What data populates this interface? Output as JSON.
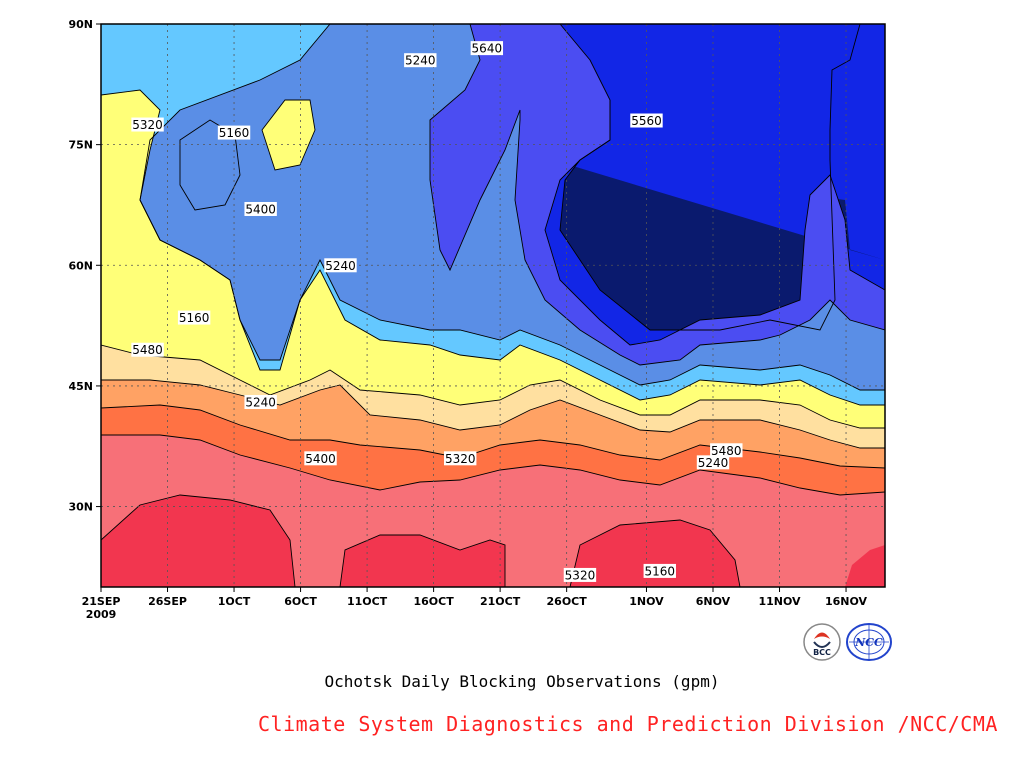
{
  "chart_data": {
    "type": "heatmap",
    "subtype": "filled-contour",
    "title": "",
    "xlabel": "",
    "ylabel": "",
    "caption": "Ochotsk Daily Blocking Observations (gpm)",
    "credit": "Climate System Diagnostics and Prediction Division /NCC/CMA",
    "x_axis": {
      "ticks": [
        {
          "day": 0,
          "label": "21SEP",
          "sublabel": "2009"
        },
        {
          "day": 5,
          "label": "26SEP"
        },
        {
          "day": 10,
          "label": "1OCT"
        },
        {
          "day": 15,
          "label": "6OCT"
        },
        {
          "day": 20,
          "label": "11OCT"
        },
        {
          "day": 25,
          "label": "16OCT"
        },
        {
          "day": 30,
          "label": "21OCT"
        },
        {
          "day": 35,
          "label": "26OCT"
        },
        {
          "day": 41,
          "label": "1NOV"
        },
        {
          "day": 46,
          "label": "6NOV"
        },
        {
          "day": 51,
          "label": "11NOV"
        },
        {
          "day": 56,
          "label": "16NOV"
        }
      ],
      "range": [
        "21SEP2009",
        "19NOV2009"
      ]
    },
    "y_axis": {
      "ticks": [
        {
          "lat": 30,
          "label": "30N"
        },
        {
          "lat": 45,
          "label": "45N"
        },
        {
          "lat": 60,
          "label": "60N"
        },
        {
          "lat": 75,
          "label": "75N"
        },
        {
          "lat": 90,
          "label": "90N"
        }
      ],
      "range": [
        20,
        90
      ]
    },
    "grid": true,
    "levels": [
      5160,
      5240,
      5320,
      5400,
      5480,
      5560,
      5640,
      5720,
      5800,
      5880
    ],
    "colors": [
      "#0a1a6e",
      "#1226e6",
      "#4b4df2",
      "#5a8ee6",
      "#64c8ff",
      "#ffff78",
      "#ffe0a0",
      "#ffa264",
      "#ff7244",
      "#f77078",
      "#f2364f"
    ],
    "contour_labels": [
      {
        "value": "5480",
        "day": 3.5,
        "lat": 40.5
      },
      {
        "value": "5400",
        "day": 16.5,
        "lat": 54.0
      },
      {
        "value": "5320",
        "day": 27.0,
        "lat": 54.0
      },
      {
        "value": "5240",
        "day": 46.0,
        "lat": 54.5
      },
      {
        "value": "5160",
        "day": 42.0,
        "lat": 68.0
      },
      {
        "value": "5240",
        "day": 18.0,
        "lat": 30.0
      },
      {
        "value": "5320",
        "day": 36.0,
        "lat": 68.5
      },
      {
        "value": "5160",
        "day": 7.0,
        "lat": 36.5
      },
      {
        "value": "5160",
        "day": 10.0,
        "lat": 13.5
      },
      {
        "value": "5240",
        "day": 24.0,
        "lat": 4.5
      },
      {
        "value": "5240",
        "day": 12.0,
        "lat": 47.0
      },
      {
        "value": "5320",
        "day": 3.5,
        "lat": 12.5
      },
      {
        "value": "5400",
        "day": 12.0,
        "lat": 23.0
      },
      {
        "value": "5480",
        "day": 47.0,
        "lat": 53.0
      },
      {
        "value": "5560",
        "day": 41.0,
        "lat": 12.0
      },
      {
        "value": "5640",
        "day": 29.0,
        "lat": 3.0
      }
    ]
  },
  "logos": [
    {
      "name": "bcc-logo",
      "text": "BCC"
    },
    {
      "name": "ncc-logo",
      "text": "NCC"
    }
  ]
}
